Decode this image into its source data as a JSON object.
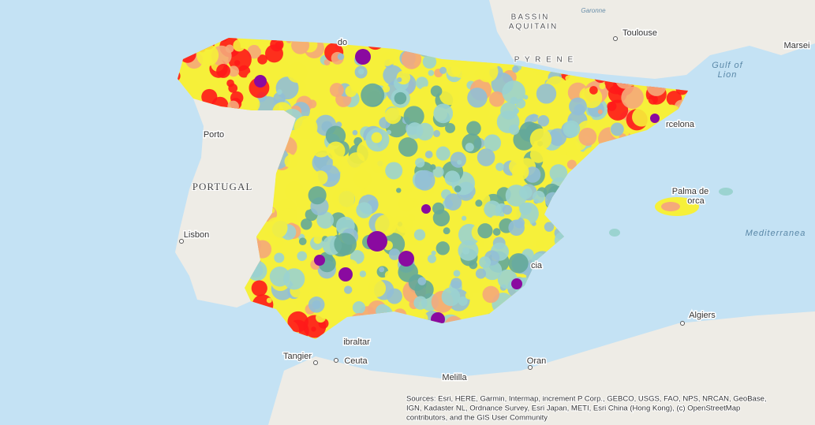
{
  "labels": {
    "bassin": "BASSIN",
    "aquitain": "AQUITAIN",
    "garonne": "Garonne",
    "toulouse": "Toulouse",
    "marseille": "Marsei",
    "pyrenees": "P Y R E N E",
    "gulf1": "Gulf of",
    "gulf2": "Lion",
    "oviedo": "do",
    "porto": "Porto",
    "portugal": "PORTUGAL",
    "lisbon": "Lisbon",
    "barcelona": "rcelona",
    "palma1": "Palma de",
    "palma2": "orca",
    "mediterranean": "Mediterranea",
    "valencia": "cia",
    "gibraltar": "ibraltar",
    "tangier": "Tangier",
    "ceuta": "Ceuta",
    "melilla": "Melilla",
    "oran": "Oran",
    "algiers": "Algiers"
  },
  "attribution": [
    "Sources: Esri, HERE, Garmin, Intermap, increment P Corp., GEBCO, USGS, FAO, NPS, NRCAN, GeoBase,",
    "IGN, Kadaster NL, Ordnance Survey, Esri Japan, METI, Esri China (Hong Kong), (c) OpenStreetMap",
    "contributors, and the GIS User Community"
  ]
}
